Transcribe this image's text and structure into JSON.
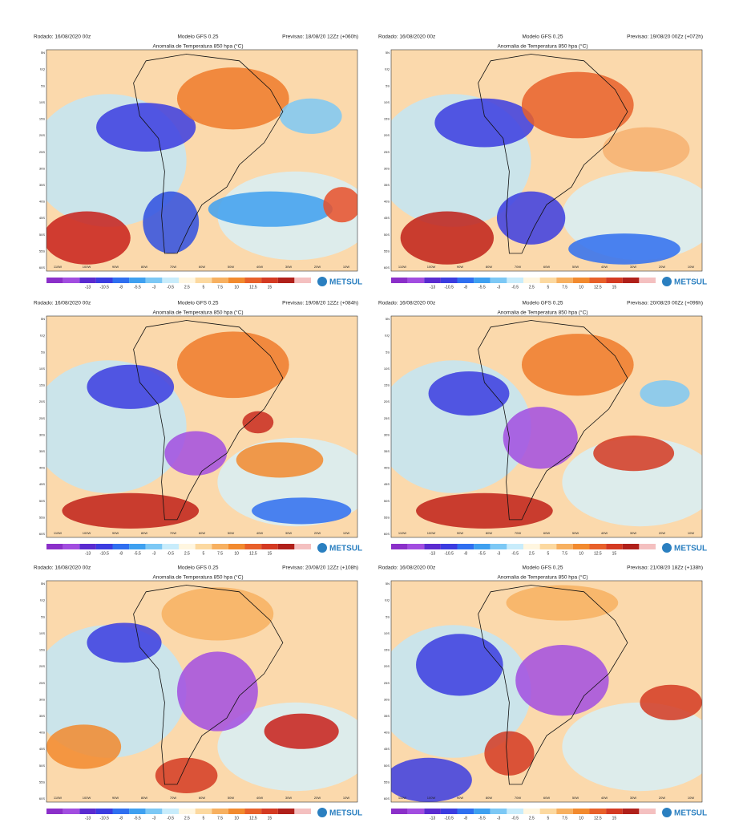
{
  "panels": [
    {
      "run": "Rodado: 16/08/2020 00z",
      "model": "Modelo GFS 0.25",
      "forecast": "Previsao: 18/08/20 12Zz (+060h)",
      "title": "Anomalia de Temperatura 850 hpa (°C)"
    },
    {
      "run": "Rodado: 16/08/2020 00z",
      "model": "Modelo GFS 0.25",
      "forecast": "Previsao: 19/08/20 00Zz (+072h)",
      "title": "Anomalia de Temperatura 850 hpa (°C)"
    },
    {
      "run": "Rodado: 16/08/2020 00z",
      "model": "Modelo GFS 0.25",
      "forecast": "Previsao: 19/08/20 12Zz (+084h)",
      "title": "Anomalia de Temperatura 850 hpa (°C)"
    },
    {
      "run": "Rodado: 16/08/2020 00z",
      "model": "Modelo GFS 0.25",
      "forecast": "Previsao: 20/08/20 00Zz (+096h)",
      "title": "Anomalia de Temperatura 850 hpa (°C)"
    },
    {
      "run": "Rodado: 16/08/2020 00z",
      "model": "Modelo GFS 0.25",
      "forecast": "Previsao: 20/08/20 12Zz (+108h)",
      "title": "Anomalia de Temperatura 850 hpa (°C)"
    },
    {
      "run": "Rodado: 16/08/2020 00z",
      "model": "Modelo GFS 0.25",
      "forecast": "Previsao: 21/08/20 18Zz (+138h)",
      "title": "Anomalia de Temperatura 850 hpa (°C)"
    }
  ],
  "colorbar_labels": [
    "-13",
    "-10.5",
    "-8",
    "-5.5",
    "-3",
    "-0.5",
    "2.5",
    "5",
    "7.5",
    "10",
    "12.5",
    "15"
  ],
  "lon_labels": [
    "110W",
    "100W",
    "90W",
    "80W",
    "70W",
    "60W",
    "50W",
    "40W",
    "30W",
    "20W",
    "10W"
  ],
  "lat_labels": [
    "5N",
    "EQ",
    "5S",
    "10S",
    "15S",
    "20S",
    "25S",
    "30S",
    "35S",
    "40S",
    "45S",
    "50S",
    "55S",
    "60S"
  ],
  "brand": "METSUL"
}
